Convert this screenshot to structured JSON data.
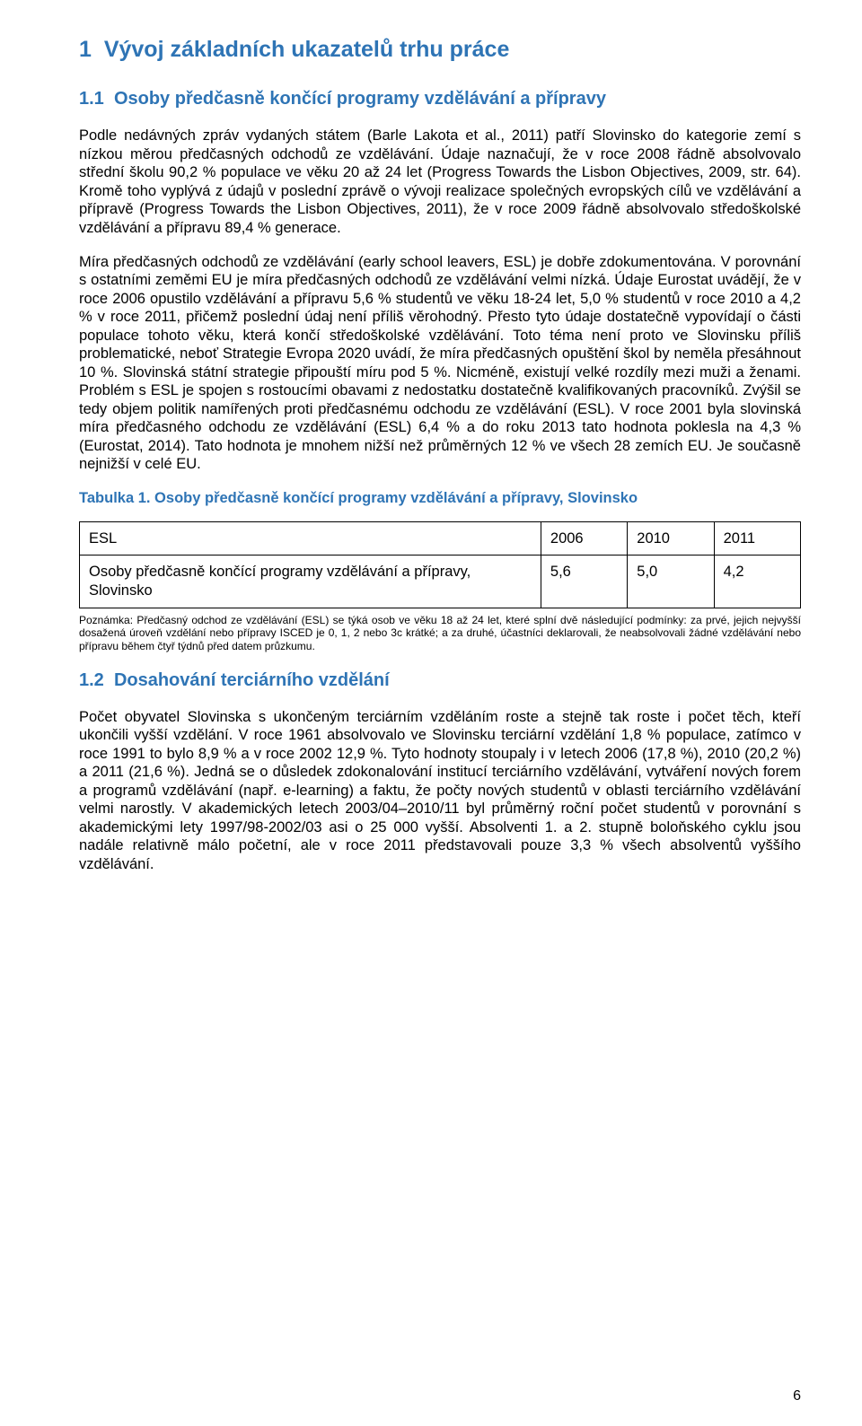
{
  "section": {
    "number": "1",
    "title": "Vývoj základních ukazatelů trhu práce"
  },
  "sub1": {
    "number": "1.1",
    "title": "Osoby předčasně končící programy vzdělávání a přípravy",
    "para1": "Podle nedávných zpráv vydaných státem (Barle Lakota et al., 2011) patří Slovinsko do kategorie zemí s nízkou měrou předčasných odchodů ze vzdělávání. Údaje naznačují, že v roce 2008 řádně absolvovalo střední školu 90,2 % populace ve věku 20 až 24 let (Progress Towards the Lisbon Objectives, 2009, str. 64). Kromě toho vyplývá z údajů v poslední zprávě o vývoji realizace společných evropských cílů ve vzdělávání a přípravě (Progress Towards the Lisbon Objectives, 2011), že v roce 2009 řádně absolvovalo středoškolské vzdělávání a přípravu 89,4 % generace.",
    "para2": "Míra předčasných odchodů ze vzdělávání (early school leavers, ESL) je dobře zdokumentována. V porovnání s ostatními zeměmi EU je míra předčasných odchodů ze vzdělávání velmi nízká. Údaje Eurostat uvádějí, že v roce 2006 opustilo vzdělávání a přípravu 5,6 % studentů ve věku 18-24 let, 5,0 % studentů v roce 2010 a 4,2 % v roce 2011, přičemž poslední údaj není příliš věrohodný. Přesto tyto údaje dostatečně vypovídají o části populace tohoto věku, která končí středoškolské vzdělávání. Toto téma není proto ve Slovinsku příliš problematické, neboť Strategie Evropa 2020 uvádí, že míra předčasných opuštění škol by neměla přesáhnout 10 %. Slovinská státní strategie připouští míru pod 5 %. Nicméně, existují velké rozdíly mezi muži a ženami. Problém s ESL je spojen s rostoucími obavami z nedostatku dostatečně kvalifikovaných pracovníků. Zvýšil se tedy objem politik namířených proti předčasnému odchodu ze vzdělávání (ESL). V roce 2001 byla slovinská míra předčasného odchodu ze vzdělávání (ESL) 6,4 % a do roku 2013 tato hodnota poklesla na 4,3 % (Eurostat, 2014). Tato hodnota je mnohem nižší než průměrných 12 % ve všech 28 zemích EU. Je současně nejnižší v celé EU."
  },
  "table1": {
    "caption": "Tabulka 1. Osoby předčasně končící programy vzdělávání a přípravy, Slovinsko",
    "header_label": "ESL",
    "year1": "2006",
    "year2": "2010",
    "year3": "2011",
    "row_label": "Osoby předčasně končící programy vzdělávání a přípravy, Slovinsko",
    "v1": "5,6",
    "v2": "5,0",
    "v3": "4,2",
    "note": "Poznámka: Předčasný odchod ze vzdělávání (ESL) se týká osob ve věku 18 až 24 let, které splní dvě následující podmínky: za prvé, jejich nejvyšší dosažená úroveň vzdělání nebo přípravy ISCED je 0, 1, 2 nebo 3c krátké; a za druhé, účastníci deklarovali, že neabsolvovali žádné vzdělávání nebo přípravu během čtyř týdnů před datem průzkumu."
  },
  "sub2": {
    "number": "1.2",
    "title": "Dosahování terciárního vzdělání",
    "para1": "Počet obyvatel Slovinska s ukončeným terciárním vzděláním roste a stejně tak roste i počet těch, kteří ukončili vyšší vzdělání. V roce 1961 absolvovalo ve Slovinsku terciární vzdělání 1,8 % populace, zatímco v roce 1991 to bylo 8,9 % a v roce 2002 12,9 %. Tyto hodnoty stoupaly i v letech 2006 (17,8 %), 2010 (20,2 %) a 2011 (21,6 %). Jedná se o důsledek zdokonalování institucí terciárního vzdělávání, vytváření nových forem a programů vzdělávání (např. e-learning) a faktu, že počty nových studentů v oblasti terciárního vzdělávání velmi narostly. V akademických letech 2003/04–2010/11 byl průměrný roční počet studentů v porovnání s akademickými lety 1997/98-2002/03 asi o 25 000 vyšší. Absolventi 1. a 2. stupně boloňského cyklu jsou nadále relativně málo početní, ale v roce 2011 představovali pouze 3,3 % všech absolventů vyššího vzdělávání."
  },
  "page_number": "6",
  "colors": {
    "heading": "#2e74b5",
    "text": "#000000",
    "border": "#000000",
    "background": "#ffffff"
  }
}
